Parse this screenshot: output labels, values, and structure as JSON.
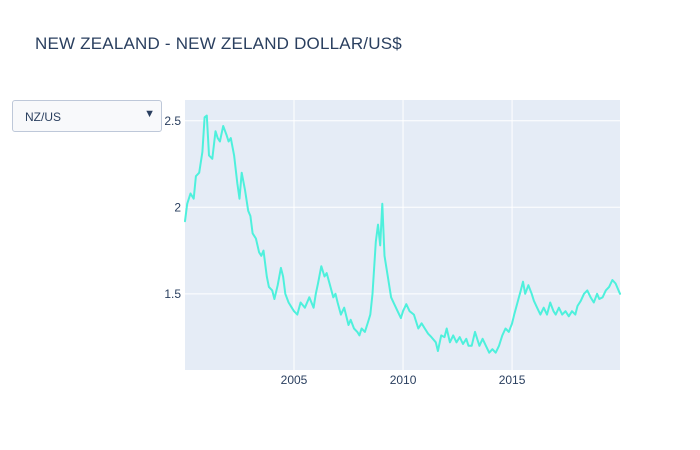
{
  "title": "NEW ZEALAND - NEW ZELAND DOLLAR/US$",
  "dropdown": {
    "selected": "NZ/US",
    "arrow_icon": "triangle-down-icon"
  },
  "colors": {
    "line": "#4ef0dc",
    "plot_bg": "#e5ecf6",
    "grid": "#ffffff",
    "text": "#2a3f5f"
  },
  "chart_data": {
    "type": "line",
    "title": "NEW ZEALAND - NEW ZELAND DOLLAR/US$",
    "xlabel": "",
    "ylabel": "",
    "x_range": [
      2000.0,
      2019.95
    ],
    "ylim": [
      1.06,
      2.62
    ],
    "x_ticks": [
      2005,
      2010,
      2015
    ],
    "x_tick_labels": [
      "2005",
      "2010",
      "2015"
    ],
    "y_ticks": [
      1.5,
      2,
      2.5
    ],
    "y_tick_labels": [
      "1.5",
      "2",
      "2.5"
    ],
    "grid": true,
    "legend": "none",
    "series": [
      {
        "x": [
          2000.0,
          2000.1,
          2000.25,
          2000.4,
          2000.5,
          2000.65,
          2000.8,
          2000.9,
          2001.0,
          2001.1,
          2001.25,
          2001.4,
          2001.5,
          2001.6,
          2001.75,
          2001.9,
          2002.0,
          2002.1,
          2002.25,
          2002.4,
          2002.5,
          2002.6,
          2002.75,
          2002.9,
          2003.0,
          2003.1,
          2003.25,
          2003.4,
          2003.5,
          2003.6,
          2003.75,
          2003.85,
          2004.0,
          2004.1,
          2004.25,
          2004.4,
          2004.5,
          2004.6,
          2004.75,
          2004.9,
          2005.0,
          2005.15,
          2005.3,
          2005.5,
          2005.7,
          2005.9,
          2006.0,
          2006.1,
          2006.25,
          2006.4,
          2006.5,
          2006.65,
          2006.8,
          2006.9,
          2007.0,
          2007.15,
          2007.3,
          2007.5,
          2007.6,
          2007.75,
          2007.9,
          2008.0,
          2008.1,
          2008.25,
          2008.4,
          2008.5,
          2008.6,
          2008.75,
          2008.85,
          2008.95,
          2009.05,
          2009.15,
          2009.3,
          2009.45,
          2009.6,
          2009.75,
          2009.9,
          2010.0,
          2010.15,
          2010.3,
          2010.5,
          2010.7,
          2010.85,
          2011.0,
          2011.15,
          2011.3,
          2011.5,
          2011.6,
          2011.75,
          2011.9,
          2012.0,
          2012.15,
          2012.3,
          2012.45,
          2012.6,
          2012.75,
          2012.9,
          2013.0,
          2013.15,
          2013.3,
          2013.5,
          2013.65,
          2013.8,
          2013.95,
          2014.1,
          2014.25,
          2014.4,
          2014.55,
          2014.7,
          2014.85,
          2015.0,
          2015.1,
          2015.25,
          2015.4,
          2015.5,
          2015.6,
          2015.75,
          2015.9,
          2016.0,
          2016.15,
          2016.3,
          2016.45,
          2016.6,
          2016.75,
          2016.9,
          2017.0,
          2017.15,
          2017.3,
          2017.45,
          2017.6,
          2017.75,
          2017.9,
          2018.0,
          2018.15,
          2018.3,
          2018.45,
          2018.6,
          2018.75,
          2018.9,
          2019.0,
          2019.15,
          2019.3,
          2019.45,
          2019.6,
          2019.75,
          2019.95
        ],
        "y": [
          1.92,
          2.02,
          2.08,
          2.05,
          2.18,
          2.2,
          2.32,
          2.52,
          2.53,
          2.3,
          2.28,
          2.44,
          2.4,
          2.38,
          2.47,
          2.42,
          2.38,
          2.4,
          2.3,
          2.14,
          2.05,
          2.2,
          2.1,
          1.98,
          1.95,
          1.85,
          1.82,
          1.74,
          1.72,
          1.75,
          1.6,
          1.54,
          1.52,
          1.47,
          1.55,
          1.65,
          1.6,
          1.5,
          1.45,
          1.42,
          1.4,
          1.38,
          1.45,
          1.42,
          1.48,
          1.42,
          1.5,
          1.56,
          1.66,
          1.6,
          1.62,
          1.55,
          1.48,
          1.5,
          1.45,
          1.38,
          1.42,
          1.32,
          1.35,
          1.3,
          1.28,
          1.26,
          1.3,
          1.28,
          1.34,
          1.38,
          1.5,
          1.8,
          1.9,
          1.78,
          2.02,
          1.72,
          1.6,
          1.48,
          1.44,
          1.4,
          1.36,
          1.4,
          1.44,
          1.4,
          1.38,
          1.3,
          1.33,
          1.3,
          1.27,
          1.25,
          1.22,
          1.17,
          1.26,
          1.25,
          1.3,
          1.22,
          1.26,
          1.22,
          1.25,
          1.21,
          1.24,
          1.2,
          1.2,
          1.28,
          1.2,
          1.24,
          1.2,
          1.16,
          1.18,
          1.16,
          1.2,
          1.26,
          1.3,
          1.28,
          1.33,
          1.38,
          1.45,
          1.52,
          1.57,
          1.5,
          1.55,
          1.5,
          1.46,
          1.42,
          1.38,
          1.42,
          1.38,
          1.45,
          1.4,
          1.38,
          1.42,
          1.38,
          1.4,
          1.37,
          1.4,
          1.38,
          1.43,
          1.46,
          1.5,
          1.52,
          1.48,
          1.45,
          1.5,
          1.47,
          1.48,
          1.52,
          1.54,
          1.58,
          1.56,
          1.5
        ]
      }
    ]
  }
}
